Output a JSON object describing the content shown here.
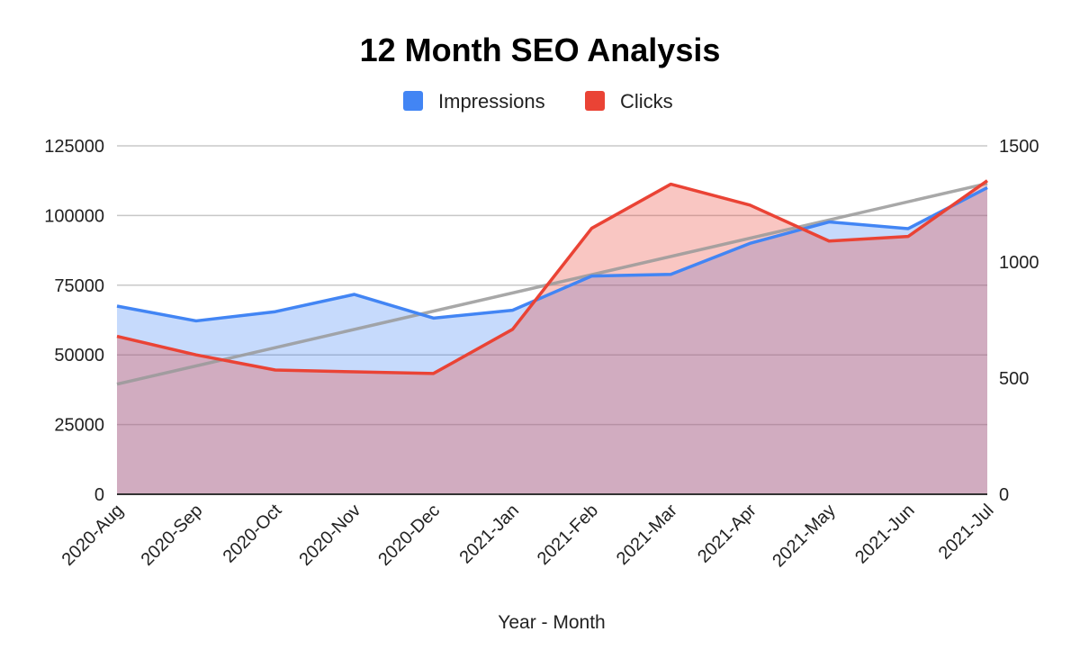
{
  "chart_data": {
    "type": "area",
    "title": "12 Month SEO Analysis",
    "xlabel": "Year - Month",
    "ylabel": "",
    "categories": [
      "2020-Aug",
      "2020-Sep",
      "2020-Oct",
      "2020-Nov",
      "2020-Dec",
      "2021-Jan",
      "2021-Feb",
      "2021-Mar",
      "2021-Apr",
      "2021-May",
      "2021-Jun",
      "2021-Jul"
    ],
    "y_left": {
      "min": 0,
      "max": 125000,
      "ticks": [
        0,
        25000,
        50000,
        75000,
        100000,
        125000
      ]
    },
    "y_right": {
      "min": 0,
      "max": 1500,
      "ticks": [
        0,
        500,
        1000,
        1500
      ]
    },
    "grid": true,
    "legend_position": "top",
    "series": [
      {
        "name": "Impressions",
        "axis": "left",
        "color": "#4285f4",
        "fill": "#c5d9f8",
        "values": [
          67500,
          62200,
          65500,
          71700,
          63200,
          66000,
          78300,
          78900,
          90000,
          97700,
          95300,
          110000
        ]
      },
      {
        "name": "Clicks",
        "axis": "right",
        "color": "#ea4335",
        "fill": "#f6c3bf",
        "values": [
          680,
          600,
          535,
          527,
          520,
          710,
          1145,
          1335,
          1245,
          1090,
          1110,
          1350
        ]
      }
    ],
    "trendline": {
      "series": "Impressions",
      "color": "#999999",
      "start": 39500,
      "end": 111500
    }
  }
}
